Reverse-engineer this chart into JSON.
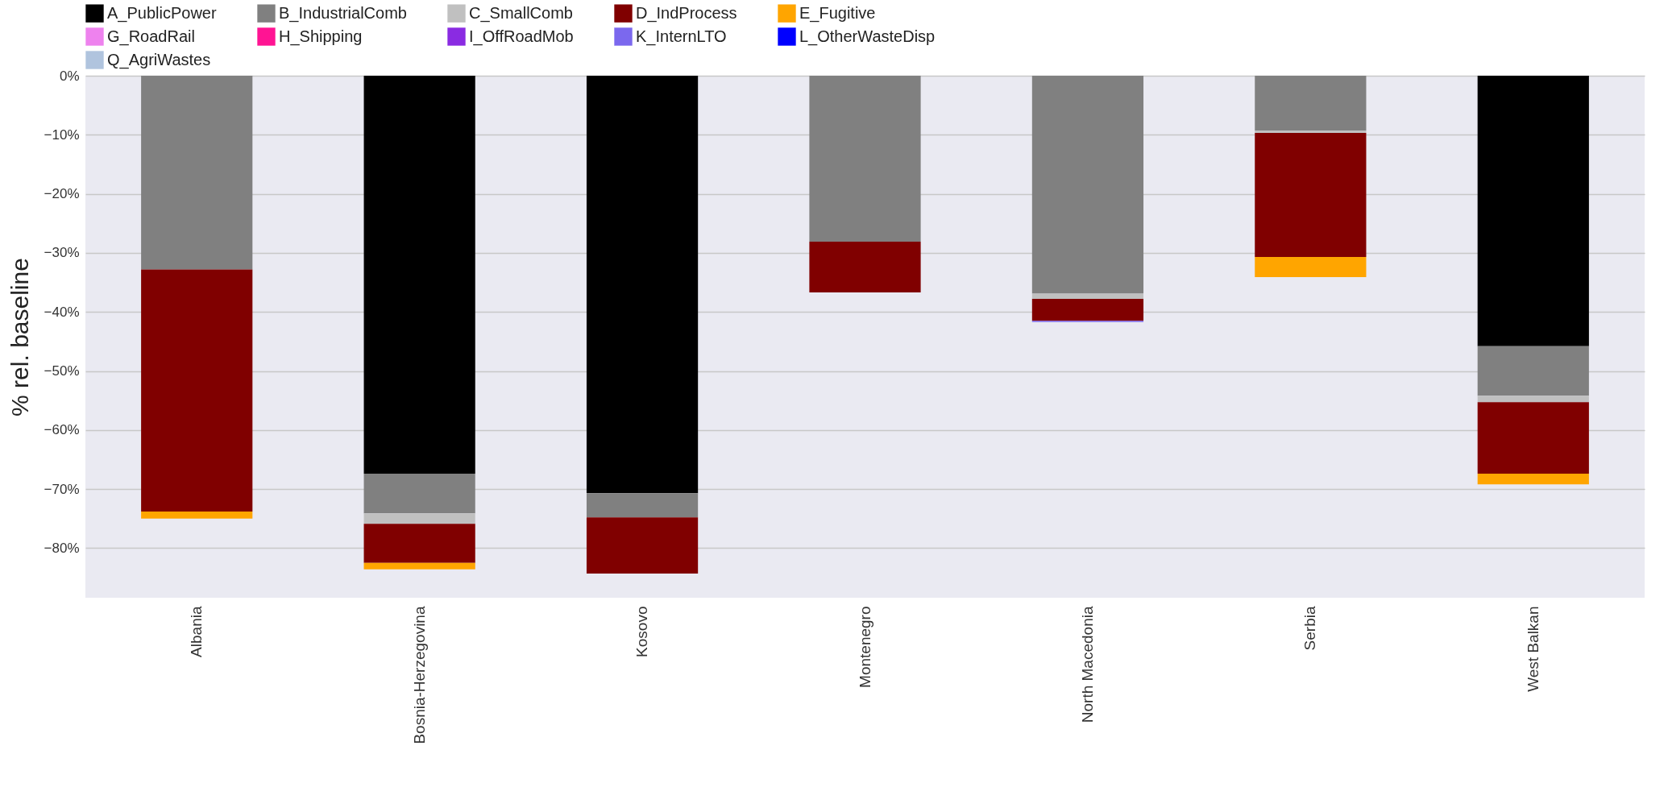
{
  "chart_data": {
    "type": "bar",
    "stacked": true,
    "ylabel": "% rel. baseline",
    "categories": [
      "Albania",
      "Bosnia-Herzegovina",
      "Kosovo",
      "Montenegro",
      "North Macedonia",
      "Serbia",
      "West Balkan"
    ],
    "series": [
      {
        "name": "A_PublicPower",
        "color": "#000000",
        "values": [
          null,
          -67.4,
          -70.7,
          null,
          null,
          null,
          -45.8
        ]
      },
      {
        "name": "B_IndustrialComb",
        "color": "#808080",
        "values": [
          -32.8,
          -6.7,
          -4.1,
          -28.1,
          -36.9,
          -9.3,
          -8.4
        ]
      },
      {
        "name": "C_SmallComb",
        "color": "#c0c0c0",
        "values": [
          null,
          -1.8,
          null,
          null,
          -0.9,
          -0.4,
          -1.1
        ]
      },
      {
        "name": "D_IndProcess",
        "color": "#800000",
        "values": [
          -41.0,
          -6.6,
          -9.5,
          -8.6,
          -3.7,
          -21.0,
          -12.1
        ]
      },
      {
        "name": "E_Fugitive",
        "color": "#ffa500",
        "values": [
          -1.2,
          -1.1,
          null,
          null,
          null,
          -3.4,
          -1.8
        ]
      },
      {
        "name": "G_RoadRail",
        "color": "#ee82ee",
        "values": [
          null,
          null,
          null,
          null,
          null,
          null,
          null
        ]
      },
      {
        "name": "H_Shipping",
        "color": "#ff1493",
        "values": [
          null,
          null,
          null,
          null,
          null,
          null,
          null
        ]
      },
      {
        "name": "I_OffRoadMob",
        "color": "#8a2be2",
        "values": [
          null,
          null,
          null,
          null,
          null,
          null,
          null
        ]
      },
      {
        "name": "K_InternLTO",
        "color": "#7b68ee",
        "values": [
          null,
          null,
          null,
          null,
          -0.2,
          null,
          null
        ]
      },
      {
        "name": "L_OtherWasteDisp",
        "color": "#0000ff",
        "values": [
          null,
          null,
          null,
          null,
          null,
          null,
          null
        ]
      },
      {
        "name": "Q_AgriWastes",
        "color": "#b0c4de",
        "values": [
          null,
          null,
          null,
          null,
          null,
          null,
          null
        ]
      }
    ],
    "ylim": [
      -88.4,
      0
    ],
    "yticks": [
      {
        "value": 0,
        "label": "0%"
      },
      {
        "value": -10,
        "label": "−10%"
      },
      {
        "value": -20,
        "label": "−20%"
      },
      {
        "value": -30,
        "label": "−30%"
      },
      {
        "value": -40,
        "label": "−40%"
      },
      {
        "value": -50,
        "label": "−50%"
      },
      {
        "value": -60,
        "label": "−60%"
      },
      {
        "value": -70,
        "label": "−70%"
      },
      {
        "value": -80,
        "label": "−80%"
      }
    ],
    "grid": "y",
    "legend": "top"
  }
}
